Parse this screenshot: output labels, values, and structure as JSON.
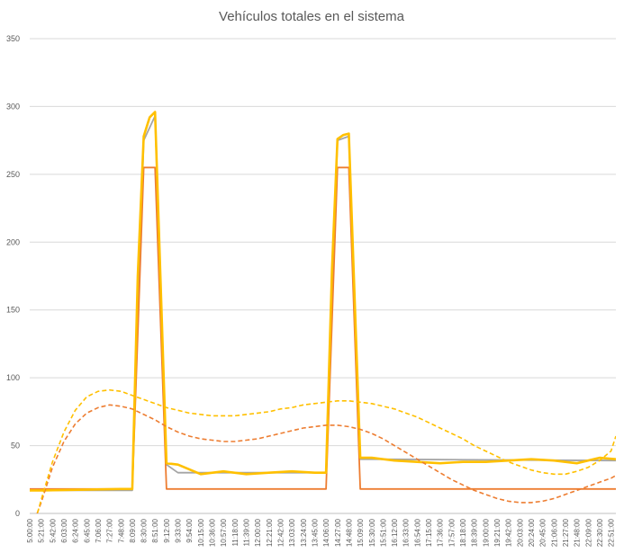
{
  "chart_data": {
    "type": "line",
    "title": "Vehículos totales en el sistema",
    "xlabel": "",
    "ylabel": "",
    "ylim": [
      0,
      350
    ],
    "yticks": [
      0,
      50,
      100,
      150,
      200,
      250,
      300,
      350
    ],
    "grid": true,
    "legend": "none",
    "x_tick_labels": [
      "5:00:00",
      "5:21:00",
      "5:42:00",
      "6:03:00",
      "6:24:00",
      "6:45:00",
      "7:06:00",
      "7:27:00",
      "7:48:00",
      "8:09:00",
      "8:30:00",
      "8:51:00",
      "9:12:00",
      "9:33:00",
      "9:54:00",
      "10:15:00",
      "10:36:00",
      "10:57:00",
      "11:18:00",
      "11:39:00",
      "12:00:00",
      "12:21:00",
      "12:42:00",
      "13:03:00",
      "13:24:00",
      "13:45:00",
      "14:06:00",
      "14:27:00",
      "14:48:00",
      "15:09:00",
      "15:30:00",
      "15:51:00",
      "16:12:00",
      "16:33:00",
      "16:54:00",
      "17:15:00",
      "17:36:00",
      "17:57:00",
      "18:18:00",
      "18:39:00",
      "19:00:00",
      "19:21:00",
      "19:42:00",
      "20:03:00",
      "20:24:00",
      "20:45:00",
      "21:06:00",
      "21:27:00",
      "21:48:00",
      "22:09:00",
      "22:30:00",
      "22:51:00"
    ],
    "series": [
      {
        "color": "#ED7D31",
        "style": "solid",
        "x": [
          "5:00:00",
          "5:21:00",
          "7:48:00",
          "8:09:00",
          "8:30:00",
          "8:51:00",
          "9:12:00",
          "9:33:00",
          "13:45:00",
          "14:06:00",
          "14:27:00",
          "14:48:00",
          "15:09:00",
          "15:30:00",
          "22:51:00",
          "23:00:00"
        ],
        "values": [
          18,
          18,
          18,
          18,
          255,
          255,
          18,
          18,
          18,
          18,
          255,
          255,
          18,
          18,
          18,
          18
        ]
      },
      {
        "color": "#FFC000",
        "style": "solid",
        "x": [
          "5:00:00",
          "5:21:00",
          "7:48:00",
          "8:09:00",
          "8:19:00",
          "8:30:00",
          "8:41:00",
          "8:51:00",
          "9:12:00",
          "9:33:00",
          "10:15:00",
          "10:57:00",
          "11:39:00",
          "12:21:00",
          "13:03:00",
          "13:45:00",
          "14:06:00",
          "14:17:00",
          "14:27:00",
          "14:38:00",
          "14:48:00",
          "15:09:00",
          "15:30:00",
          "16:12:00",
          "16:54:00",
          "17:36:00",
          "18:18:00",
          "19:00:00",
          "19:42:00",
          "20:24:00",
          "21:06:00",
          "21:48:00",
          "22:30:00",
          "23:00:00"
        ],
        "values": [
          17,
          17,
          18,
          18,
          175,
          278,
          292,
          296,
          37,
          36,
          29,
          31,
          29,
          30,
          31,
          30,
          30,
          180,
          276,
          279,
          280,
          41,
          41,
          39,
          38,
          37,
          38,
          38,
          39,
          40,
          39,
          37,
          41,
          40
        ]
      },
      {
        "color": "#A5A5A5",
        "style": "solid",
        "x": [
          "5:00:00",
          "7:48:00",
          "8:09:00",
          "8:30:00",
          "8:51:00",
          "9:12:00",
          "9:33:00",
          "13:45:00",
          "14:06:00",
          "14:27:00",
          "14:48:00",
          "15:09:00",
          "15:30:00",
          "23:00:00"
        ],
        "values": [
          17,
          17,
          17,
          275,
          293,
          36,
          30,
          30,
          30,
          275,
          278,
          40,
          40,
          39
        ]
      },
      {
        "color": "#ED7D31",
        "style": "dashed",
        "x": [
          "5:00:00",
          "5:21:00",
          "5:42:00",
          "6:03:00",
          "6:24:00",
          "6:45:00",
          "7:06:00",
          "7:27:00",
          "7:48:00",
          "8:09:00",
          "8:30:00",
          "8:51:00",
          "9:12:00",
          "9:33:00",
          "9:54:00",
          "10:15:00",
          "10:36:00",
          "10:57:00",
          "11:18:00",
          "11:39:00",
          "12:00:00",
          "12:21:00",
          "12:42:00",
          "13:03:00",
          "13:24:00",
          "13:45:00",
          "14:06:00",
          "14:27:00",
          "14:48:00",
          "15:09:00",
          "15:30:00",
          "15:51:00",
          "16:12:00",
          "16:33:00",
          "16:54:00",
          "17:15:00",
          "17:36:00",
          "17:57:00",
          "18:18:00",
          "18:39:00",
          "19:00:00",
          "19:21:00",
          "19:42:00",
          "20:03:00",
          "20:24:00",
          "20:45:00",
          "21:06:00",
          "21:27:00",
          "21:48:00",
          "22:09:00",
          "22:30:00",
          "22:51:00",
          "23:00:00"
        ],
        "values": [
          -15,
          8,
          34,
          53,
          66,
          74,
          78,
          80,
          79,
          77,
          73,
          69,
          64,
          60,
          57,
          55,
          54,
          53,
          53,
          54,
          55,
          57,
          59,
          61,
          63,
          64,
          65,
          65,
          64,
          62,
          59,
          55,
          50,
          45,
          40,
          35,
          30,
          25,
          21,
          17,
          14,
          11,
          9,
          8,
          8,
          9,
          11,
          14,
          17,
          20,
          23,
          26,
          28
        ]
      },
      {
        "color": "#FFC000",
        "style": "dashed",
        "x": [
          "5:00:00",
          "5:21:00",
          "5:42:00",
          "6:03:00",
          "6:24:00",
          "6:45:00",
          "7:06:00",
          "7:27:00",
          "7:48:00",
          "8:09:00",
          "8:30:00",
          "8:51:00",
          "9:12:00",
          "9:33:00",
          "9:54:00",
          "10:15:00",
          "10:36:00",
          "10:57:00",
          "11:18:00",
          "11:39:00",
          "12:00:00",
          "12:21:00",
          "12:42:00",
          "13:03:00",
          "13:24:00",
          "13:45:00",
          "14:06:00",
          "14:27:00",
          "14:48:00",
          "15:09:00",
          "15:30:00",
          "15:51:00",
          "16:12:00",
          "16:33:00",
          "16:54:00",
          "17:15:00",
          "17:36:00",
          "17:57:00",
          "18:18:00",
          "18:39:00",
          "19:00:00",
          "19:21:00",
          "19:42:00",
          "20:03:00",
          "20:24:00",
          "20:45:00",
          "21:06:00",
          "21:27:00",
          "21:48:00",
          "22:09:00",
          "22:30:00",
          "22:51:00",
          "23:00:00"
        ],
        "values": [
          -20,
          10,
          38,
          60,
          76,
          86,
          90,
          91,
          90,
          87,
          84,
          81,
          78,
          76,
          74,
          73,
          72,
          72,
          72,
          73,
          74,
          75,
          77,
          78,
          80,
          81,
          82,
          83,
          83,
          82,
          81,
          79,
          77,
          74,
          71,
          67,
          63,
          59,
          55,
          50,
          46,
          42,
          38,
          35,
          32,
          30,
          29,
          29,
          31,
          34,
          39,
          46,
          57
        ]
      }
    ]
  }
}
